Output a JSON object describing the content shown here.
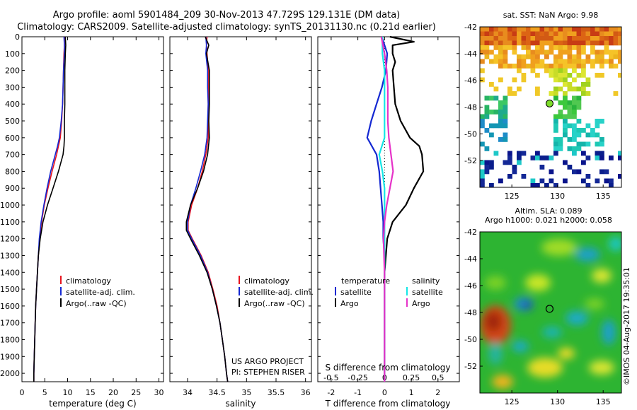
{
  "header": {
    "title_line1": "Argo profile: aoml 5901484_209 30-Nov-2013 47.729S 129.131E (DM data)",
    "title_line2": "Climatology: CARS2009. Satellite-adjusted climatology: synTS_20131130.nc (0.21d earlier)"
  },
  "credits": {
    "project": "US ARGO PROJECT",
    "pi": "PI: STEPHEN RISER",
    "imos": "©IMOS 04-Aug-2017 19:35:01"
  },
  "colors": {
    "climatology": "#e8141e",
    "satellite": "#1428d2",
    "argo": "#000000",
    "temp_diff_sat": "#1428d2",
    "sal_diff_sat": "#14e6e6",
    "sal_diff_argo": "#e632c8"
  },
  "chart_data": [
    {
      "type": "line",
      "panel": "temperature",
      "xlabel": "temperature (deg C)",
      "xlim": [
        0,
        31
      ],
      "xticks": [
        "0",
        "5",
        "10",
        "15",
        "20",
        "25",
        "30"
      ],
      "ylim": [
        2050,
        0
      ],
      "yticks": [
        "0",
        "100",
        "200",
        "300",
        "400",
        "500",
        "600",
        "700",
        "800",
        "900",
        "1000",
        "1100",
        "1200",
        "1300",
        "1400",
        "1500",
        "1600",
        "1700",
        "1800",
        "1900",
        "2000"
      ],
      "legend": [
        "climatology",
        "satellite-adj. clim.",
        "Argo(..raw -QC)"
      ],
      "series": [
        {
          "name": "climatology",
          "depth": [
            0,
            50,
            100,
            200,
            300,
            400,
            500,
            600,
            650,
            700,
            800,
            900,
            1000,
            1100,
            1200,
            1300,
            1400,
            1500,
            1600,
            1700,
            1800,
            1900,
            2000,
            2050
          ],
          "values": [
            9.3,
            9.3,
            9.2,
            9.1,
            9.0,
            8.9,
            8.7,
            8.4,
            8.0,
            7.6,
            6.6,
            5.7,
            4.9,
            4.3,
            3.9,
            3.6,
            3.4,
            3.2,
            3.0,
            2.9,
            2.8,
            2.7,
            2.6,
            2.6
          ]
        },
        {
          "name": "satellite-adj. clim.",
          "depth": [
            0,
            50,
            100,
            200,
            300,
            400,
            500,
            600,
            650,
            700,
            800,
            900,
            1000,
            1100,
            1200,
            1300,
            1400,
            1500,
            1600,
            1700,
            1800,
            1900,
            2000,
            2050
          ],
          "values": [
            9.2,
            9.3,
            9.3,
            9.1,
            9.0,
            8.9,
            8.6,
            8.2,
            7.8,
            7.3,
            6.3,
            5.5,
            4.8,
            4.2,
            3.8,
            3.6,
            3.4,
            3.2,
            3.0,
            2.9,
            2.8,
            2.7,
            2.6,
            2.6
          ]
        },
        {
          "name": "Argo(..raw -QC)",
          "depth": [
            0,
            50,
            100,
            200,
            300,
            400,
            500,
            600,
            650,
            700,
            800,
            900,
            1000,
            1100,
            1200,
            1300,
            1400,
            1500,
            1600,
            1700,
            1800,
            1900,
            2000,
            2050
          ],
          "values": [
            9.5,
            9.6,
            9.5,
            9.4,
            9.4,
            9.4,
            9.3,
            9.3,
            9.2,
            9.0,
            8.0,
            6.8,
            5.6,
            4.6,
            4.0,
            3.6,
            3.4,
            3.2,
            3.0,
            2.9,
            2.8,
            2.7,
            2.6,
            2.6
          ]
        }
      ]
    },
    {
      "type": "line",
      "panel": "salinity",
      "xlabel": "salinity",
      "xlim": [
        33.7,
        36.1
      ],
      "xticks": [
        "34",
        "34.5",
        "35",
        "35.5",
        "36"
      ],
      "ylim": [
        2050,
        0
      ],
      "legend": [
        "climatology",
        "satellite-adj. clim.",
        "Argo(..raw -QC)"
      ],
      "series": [
        {
          "name": "climatology",
          "depth": [
            0,
            50,
            100,
            200,
            300,
            400,
            500,
            600,
            700,
            800,
            900,
            1000,
            1100,
            1150,
            1200,
            1300,
            1400,
            1500,
            1600,
            1700,
            1800,
            1900,
            2000,
            2050
          ],
          "values": [
            34.33,
            34.32,
            34.33,
            34.35,
            34.35,
            34.35,
            34.35,
            34.35,
            34.31,
            34.25,
            34.17,
            34.07,
            34.01,
            34.01,
            34.08,
            34.23,
            34.35,
            34.43,
            34.5,
            34.55,
            34.59,
            34.63,
            34.66,
            34.68
          ]
        },
        {
          "name": "satellite-adj. clim.",
          "depth": [
            0,
            50,
            100,
            200,
            300,
            400,
            500,
            600,
            700,
            800,
            900,
            1000,
            1100,
            1150,
            1200,
            1300,
            1400,
            1500,
            1600,
            1700,
            1800,
            1900,
            2000,
            2050
          ],
          "values": [
            34.31,
            34.32,
            34.31,
            34.34,
            34.34,
            34.35,
            34.34,
            34.33,
            34.29,
            34.22,
            34.14,
            34.05,
            34.0,
            34.0,
            34.07,
            34.22,
            34.34,
            34.42,
            34.49,
            34.55,
            34.59,
            34.63,
            34.66,
            34.68
          ]
        },
        {
          "name": "Argo(..raw -QC)",
          "depth": [
            0,
            50,
            100,
            200,
            300,
            400,
            500,
            600,
            700,
            800,
            900,
            1000,
            1100,
            1150,
            1200,
            1300,
            1400,
            1500,
            1600,
            1700,
            1800,
            1900,
            2000,
            2050
          ],
          "values": [
            34.3,
            34.36,
            34.32,
            34.37,
            34.37,
            34.37,
            34.36,
            34.37,
            34.34,
            34.27,
            34.17,
            34.05,
            33.98,
            33.98,
            34.05,
            34.2,
            34.33,
            34.42,
            34.49,
            34.55,
            34.59,
            34.63,
            34.66,
            34.68
          ]
        }
      ]
    },
    {
      "type": "line",
      "panel": "differences",
      "xlabel": "T difference from climatology",
      "xlabel_top": "S difference from climatology",
      "xlim": [
        -2.5,
        2.8
      ],
      "xticks": [
        "-2",
        "-1",
        "0",
        "1",
        "2"
      ],
      "xticks_top": [
        "-0.5",
        "-0.25",
        "0",
        "0.25",
        "0.5"
      ],
      "ylim": [
        2050,
        0
      ],
      "legend_temperature": {
        "heading": "temperature",
        "items": [
          "satellite",
          "Argo"
        ]
      },
      "legend_salinity": {
        "heading": "salinity",
        "items": [
          "satellite",
          "Argo"
        ]
      },
      "series": [
        {
          "name": "satellite",
          "group": "temperature",
          "depth": [
            0,
            50,
            100,
            200,
            300,
            400,
            500,
            600,
            700,
            800,
            900,
            1000,
            1100,
            1200,
            1300,
            1400,
            1600,
            1800,
            2050
          ],
          "values": [
            -0.1,
            0.0,
            0.1,
            0.05,
            -0.1,
            -0.3,
            -0.5,
            -0.65,
            -0.3,
            -0.2,
            -0.15,
            -0.1,
            -0.05,
            -0.05,
            0.0,
            0.0,
            0.0,
            0.0,
            0.0
          ]
        },
        {
          "name": "Argo",
          "group": "temperature",
          "depth": [
            0,
            30,
            50,
            100,
            150,
            200,
            300,
            400,
            500,
            600,
            650,
            700,
            800,
            900,
            1000,
            1100,
            1200,
            1300,
            1400,
            1600,
            1800,
            2050
          ],
          "values": [
            0.2,
            1.1,
            0.3,
            0.3,
            0.4,
            0.3,
            0.35,
            0.4,
            0.6,
            0.95,
            1.3,
            1.4,
            1.45,
            1.1,
            0.8,
            0.3,
            0.1,
            0.05,
            0.0,
            0.0,
            0.0,
            0.0
          ]
        },
        {
          "name": "satellite",
          "group": "salinity",
          "depth": [
            0,
            100,
            200,
            300,
            400,
            500,
            600,
            700,
            800,
            900,
            1000,
            1100,
            1200,
            1400,
            1600,
            1800,
            2050
          ],
          "values": [
            -0.02,
            -0.02,
            0.0,
            0.0,
            0.0,
            0.0,
            0.0,
            -0.05,
            -0.02,
            0.0,
            0.0,
            0.0,
            0.0,
            0.0,
            0.0,
            0.0,
            0.0
          ]
        },
        {
          "name": "Argo",
          "group": "salinity",
          "depth": [
            0,
            100,
            200,
            300,
            400,
            500,
            600,
            700,
            800,
            900,
            1000,
            1100,
            1200,
            1400,
            1600,
            1800,
            2050
          ],
          "values": [
            -0.03,
            0.0,
            0.02,
            0.03,
            0.03,
            0.03,
            0.04,
            0.06,
            0.08,
            0.05,
            0.02,
            0.0,
            -0.01,
            0.0,
            0.0,
            0.0,
            0.0
          ]
        }
      ]
    },
    {
      "type": "heatmap",
      "panel": "sst_map",
      "title": "sat. SST: NaN Argo: 9.98",
      "xticks": [
        "125",
        "130",
        "135"
      ],
      "yticks": [
        "-42",
        "-44",
        "-46",
        "-48",
        "-50",
        "-52"
      ],
      "xlim": [
        121.5,
        137
      ],
      "ylim": [
        -54,
        -42
      ],
      "float_position": {
        "lon": 129.131,
        "lat": -47.729
      }
    },
    {
      "type": "heatmap",
      "panel": "sla_map",
      "title": "Altim. SLA: 0.089",
      "subtitle": "Argo h1000: 0.021 h2000: 0.058",
      "xticks": [
        "125",
        "130",
        "135"
      ],
      "yticks": [
        "-42",
        "-44",
        "-46",
        "-48",
        "-50",
        "-52"
      ],
      "xlim": [
        121.5,
        137
      ],
      "ylim": [
        -54,
        -42
      ],
      "float_position": {
        "lon": 129.131,
        "lat": -47.729
      }
    }
  ]
}
